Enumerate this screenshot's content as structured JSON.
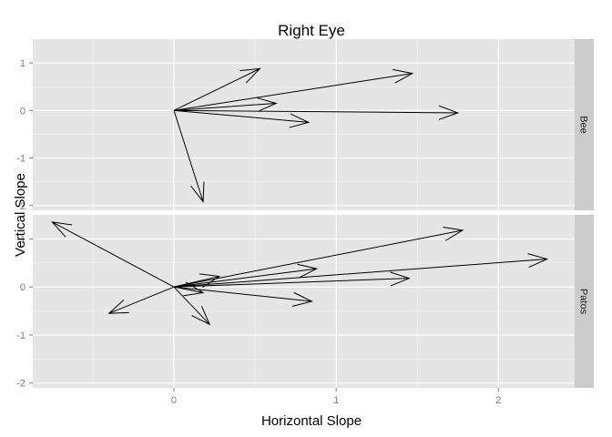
{
  "chart_data": {
    "type": "vector",
    "title": "Right Eye",
    "xlabel": "Horizontal Slope",
    "ylabel": "Vertical Slope",
    "xlim": [
      -0.87,
      2.47
    ],
    "ylim": [
      -2.1,
      1.5
    ],
    "x_ticks": [
      0,
      1,
      2
    ],
    "y_ticks": [
      -2,
      -1,
      0,
      1
    ],
    "grid": true,
    "facets": [
      {
        "label": "Bee",
        "arrows": [
          {
            "x0": 0,
            "y0": 0,
            "x1": 0.53,
            "y1": 0.88
          },
          {
            "x0": 0,
            "y0": 0,
            "x1": 1.47,
            "y1": 0.78
          },
          {
            "x0": 0,
            "y0": 0,
            "x1": 0.63,
            "y1": 0.15
          },
          {
            "x0": 0,
            "y0": 0,
            "x1": 1.75,
            "y1": -0.05
          },
          {
            "x0": 0,
            "y0": 0,
            "x1": 0.83,
            "y1": -0.25
          },
          {
            "x0": 0,
            "y0": 0,
            "x1": 0.18,
            "y1": -1.92
          }
        ]
      },
      {
        "label": "Patos",
        "arrows": [
          {
            "x0": 0,
            "y0": 0,
            "x1": -0.75,
            "y1": 1.35
          },
          {
            "x0": 0,
            "y0": 0,
            "x1": 1.78,
            "y1": 1.18
          },
          {
            "x0": 0,
            "y0": 0,
            "x1": 2.3,
            "y1": 0.58
          },
          {
            "x0": 0,
            "y0": 0,
            "x1": 1.45,
            "y1": 0.18
          },
          {
            "x0": 0,
            "y0": 0,
            "x1": 0.88,
            "y1": 0.38
          },
          {
            "x0": 0,
            "y0": 0,
            "x1": 0.28,
            "y1": 0.22
          },
          {
            "x0": 0,
            "y0": 0,
            "x1": 0.85,
            "y1": -0.3
          },
          {
            "x0": 0,
            "y0": 0,
            "x1": 0.22,
            "y1": -0.78
          },
          {
            "x0": 0,
            "y0": 0,
            "x1": -0.4,
            "y1": -0.55
          },
          {
            "x0": 0,
            "y0": 0,
            "x1": 0.18,
            "y1": -0.12
          }
        ]
      }
    ]
  }
}
